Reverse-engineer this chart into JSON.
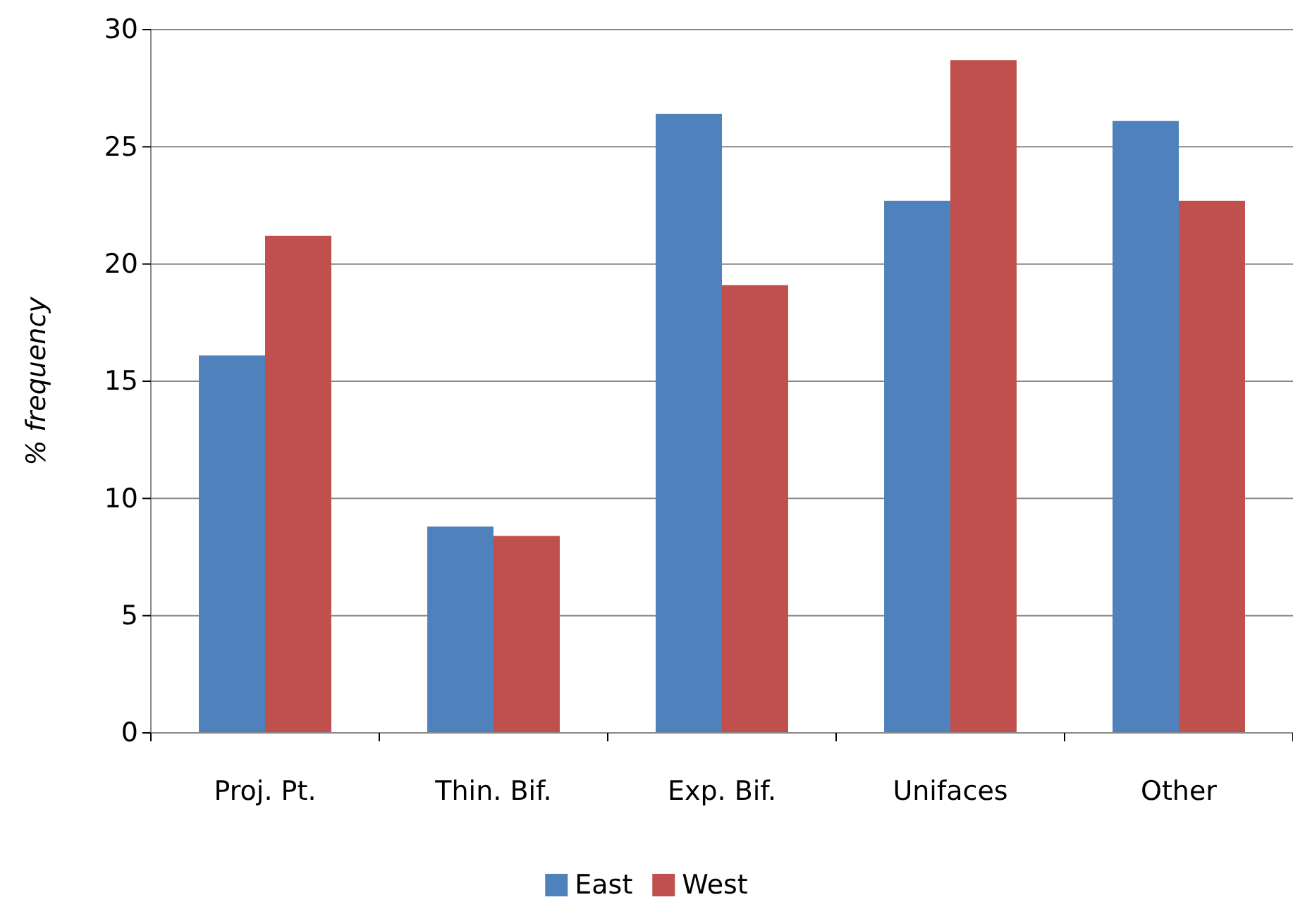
{
  "chart_data": {
    "type": "bar",
    "ylabel": "% frequency",
    "categories": [
      "Proj. Pt.",
      "Thin. Bif.",
      "Exp. Bif.",
      "Unifaces",
      "Other"
    ],
    "series": [
      {
        "name": "East",
        "color": "#4f81bd",
        "values": [
          16.1,
          8.8,
          26.4,
          22.7,
          26.1
        ]
      },
      {
        "name": "West",
        "color": "#c0504d",
        "values": [
          21.2,
          8.4,
          19.1,
          28.7,
          22.7
        ]
      }
    ],
    "ylim": [
      0,
      30
    ],
    "yticks": [
      0,
      5,
      10,
      15,
      20,
      25,
      30
    ],
    "grid": "y",
    "legend": "bottom"
  }
}
